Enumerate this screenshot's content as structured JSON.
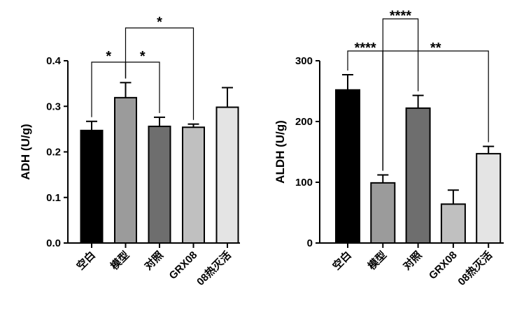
{
  "chart_data": [
    {
      "type": "bar",
      "ylabel": "ADH (U/g)",
      "ylim": [
        0,
        0.4
      ],
      "yticks": [
        "0.0",
        "0.1",
        "0.2",
        "0.3",
        "0.4"
      ],
      "ytick_values": [
        0,
        0.1,
        0.2,
        0.3,
        0.4
      ],
      "categories": [
        "空白",
        "模型",
        "对照",
        "GRX08",
        "08热灭活"
      ],
      "values": [
        0.247,
        0.319,
        0.256,
        0.254,
        0.298
      ],
      "errors": [
        0.02,
        0.033,
        0.02,
        0.007,
        0.043
      ],
      "colors": [
        "#000000",
        "#9b9b9b",
        "#6e6e6e",
        "#c0c0c0",
        "#e4e4e4"
      ],
      "significance": [
        {
          "from": 0,
          "to": 1,
          "label": "*"
        },
        {
          "from": 1,
          "to": 2,
          "label": "*"
        },
        {
          "from": 1,
          "to": 3,
          "label": "*"
        }
      ]
    },
    {
      "type": "bar",
      "ylabel": "ALDH (U/g)",
      "ylim": [
        0,
        300
      ],
      "yticks": [
        "0",
        "100",
        "200",
        "300"
      ],
      "ytick_values": [
        0,
        100,
        200,
        300
      ],
      "categories": [
        "空白",
        "模型",
        "对照",
        "GRX08",
        "08热灭活"
      ],
      "values": [
        252,
        99,
        222,
        64,
        147
      ],
      "errors": [
        25,
        13,
        21,
        23,
        12
      ],
      "colors": [
        "#000000",
        "#9b9b9b",
        "#6e6e6e",
        "#c0c0c0",
        "#e4e4e4"
      ],
      "significance": [
        {
          "from": 0,
          "to": 1,
          "label": "****"
        },
        {
          "from": 1,
          "to": 2,
          "label": "****"
        },
        {
          "from": 1,
          "to": 4,
          "label": "**"
        }
      ]
    }
  ]
}
